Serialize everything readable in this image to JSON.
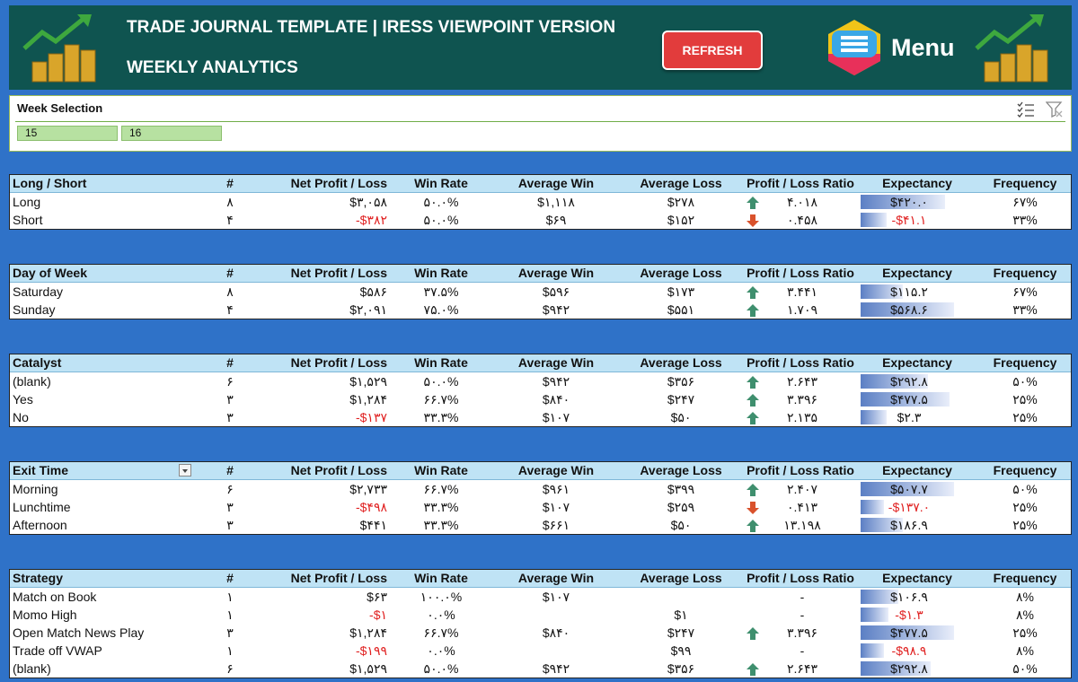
{
  "header": {
    "title": "TRADE JOURNAL TEMPLATE | IRESS VIEWPOINT VERSION",
    "subtitle": "WEEKLY ANALYTICS",
    "refresh_label": "REFRESH",
    "menu_label": "Menu",
    "colors": {
      "background": "#0f5450",
      "refresh": "#e23c3c"
    }
  },
  "slicer": {
    "title": "Week Selection",
    "items": [
      "15",
      "16"
    ]
  },
  "columns": {
    "count": "#",
    "net": "Net Profit / Loss",
    "win": "Win Rate",
    "avg_win": "Average Win",
    "avg_loss": "Average Loss",
    "ratio": "Profit / Loss Ratio",
    "exp": "Expectancy",
    "freq": "Frequency"
  },
  "tables": [
    {
      "title": "Long / Short",
      "rows": [
        {
          "name": "Long",
          "count": "۸",
          "net": "$۳,۰۵۸",
          "net_neg": false,
          "win": "۵۰.۰%",
          "avg_win": "$۱,۱۱۸",
          "avg_loss": "$۲۷۸",
          "arrow": "up",
          "ratio": "۴.۰۱۸",
          "exp": "$۴۲۰.۰",
          "exp_neg": false,
          "exp_level": 0.9,
          "freq": "۶۷%"
        },
        {
          "name": "Short",
          "count": "۴",
          "net": "-$۳۸۲",
          "net_neg": true,
          "win": "۵۰.۰%",
          "avg_win": "$۶۹",
          "avg_loss": "$۱۵۲",
          "arrow": "down",
          "ratio": "۰.۴۵۸",
          "exp": "-$۴۱.۱",
          "exp_neg": true,
          "exp_level": 0.28,
          "freq": "۳۳%"
        }
      ]
    },
    {
      "title": "Day of Week",
      "rows": [
        {
          "name": "Saturday",
          "count": "۸",
          "net": "$۵۸۶",
          "net_neg": false,
          "win": "۳۷.۵%",
          "avg_win": "$۵۹۶",
          "avg_loss": "$۱۷۳",
          "arrow": "up",
          "ratio": "۳.۴۴۱",
          "exp": "$۱۱۵.۲",
          "exp_neg": false,
          "exp_level": 0.45,
          "freq": "۶۷%"
        },
        {
          "name": "Sunday",
          "count": "۴",
          "net": "$۲,۰۹۱",
          "net_neg": false,
          "win": "۷۵.۰%",
          "avg_win": "$۹۴۲",
          "avg_loss": "$۵۵۱",
          "arrow": "up",
          "ratio": "۱.۷۰۹",
          "exp": "$۵۶۸.۶",
          "exp_neg": false,
          "exp_level": 1.0,
          "freq": "۳۳%"
        }
      ]
    },
    {
      "title": "Catalyst",
      "rows": [
        {
          "name": "(blank)",
          "count": "۶",
          "net": "$۱,۵۲۹",
          "net_neg": false,
          "win": "۵۰.۰%",
          "avg_win": "$۹۴۲",
          "avg_loss": "$۳۵۶",
          "arrow": "up",
          "ratio": "۲.۶۴۳",
          "exp": "$۲۹۲.۸",
          "exp_neg": false,
          "exp_level": 0.72,
          "freq": "۵۰%"
        },
        {
          "name": "Yes",
          "count": "۳",
          "net": "$۱,۲۸۴",
          "net_neg": false,
          "win": "۶۶.۷%",
          "avg_win": "$۸۴۰",
          "avg_loss": "$۲۴۷",
          "arrow": "up",
          "ratio": "۳.۳۹۶",
          "exp": "$۴۷۷.۵",
          "exp_neg": false,
          "exp_level": 0.95,
          "freq": "۲۵%"
        },
        {
          "name": "No",
          "count": "۳",
          "net": "-$۱۳۷",
          "net_neg": true,
          "win": "۳۳.۳%",
          "avg_win": "$۱۰۷",
          "avg_loss": "$۵۰",
          "arrow": "up",
          "ratio": "۲.۱۳۵",
          "exp": "$۲.۳",
          "exp_neg": false,
          "exp_level": 0.28,
          "freq": "۲۵%"
        }
      ]
    },
    {
      "title": "Exit Time",
      "has_dropdown": true,
      "rows": [
        {
          "name": "Morning",
          "count": "۶",
          "net": "$۲,۷۳۳",
          "net_neg": false,
          "win": "۶۶.۷%",
          "avg_win": "$۹۶۱",
          "avg_loss": "$۳۹۹",
          "arrow": "up",
          "ratio": "۲.۴۰۷",
          "exp": "$۵۰۷.۷",
          "exp_neg": false,
          "exp_level": 1.0,
          "freq": "۵۰%"
        },
        {
          "name": "Lunchtime",
          "count": "۳",
          "net": "-$۴۹۸",
          "net_neg": true,
          "win": "۳۳.۳%",
          "avg_win": "$۱۰۷",
          "avg_loss": "$۲۵۹",
          "arrow": "down",
          "ratio": "۰.۴۱۳",
          "exp": "-$۱۳۷.۰",
          "exp_neg": true,
          "exp_level": 0.25,
          "freq": "۲۵%"
        },
        {
          "name": "Afternoon",
          "count": "۳",
          "net": "$۴۴۱",
          "net_neg": false,
          "win": "۳۳.۳%",
          "avg_win": "$۶۶۱",
          "avg_loss": "$۵۰",
          "arrow": "up",
          "ratio": "۱۳.۱۹۸",
          "exp": "$۱۸۶.۹",
          "exp_neg": false,
          "exp_level": 0.45,
          "freq": "۲۵%"
        }
      ]
    },
    {
      "title": "Strategy",
      "rows": [
        {
          "name": "Match on Book",
          "count": "۱",
          "net": "$۶۳",
          "net_neg": false,
          "win": "۱۰۰.۰%",
          "avg_win": "$۱۰۷",
          "avg_loss": "",
          "arrow": "",
          "ratio": "-",
          "exp": "$۱۰۶.۹",
          "exp_neg": false,
          "exp_level": 0.4,
          "freq": "۸%"
        },
        {
          "name": "Momo High",
          "count": "۱",
          "net": "-$۱",
          "net_neg": true,
          "win": "۰.۰%",
          "avg_win": "",
          "avg_loss": "$۱",
          "arrow": "",
          "ratio": "-",
          "exp": "-$۱.۳",
          "exp_neg": true,
          "exp_level": 0.3,
          "freq": "۸%"
        },
        {
          "name": "Open Match News Play",
          "count": "۳",
          "net": "$۱,۲۸۴",
          "net_neg": false,
          "win": "۶۶.۷%",
          "avg_win": "$۸۴۰",
          "avg_loss": "$۲۴۷",
          "arrow": "up",
          "ratio": "۳.۳۹۶",
          "exp": "$۴۷۷.۵",
          "exp_neg": false,
          "exp_level": 1.0,
          "freq": "۲۵%"
        },
        {
          "name": "Trade off VWAP",
          "count": "۱",
          "net": "-$۱۹۹",
          "net_neg": true,
          "win": "۰.۰%",
          "avg_win": "",
          "avg_loss": "$۹۹",
          "arrow": "",
          "ratio": "-",
          "exp": "-$۹۸.۹",
          "exp_neg": true,
          "exp_level": 0.25,
          "freq": "۸%"
        },
        {
          "name": "(blank)",
          "count": "۶",
          "net": "$۱,۵۲۹",
          "net_neg": false,
          "win": "۵۰.۰%",
          "avg_win": "$۹۴۲",
          "avg_loss": "$۳۵۶",
          "arrow": "up",
          "ratio": "۲.۶۴۳",
          "exp": "$۲۹۲.۸",
          "exp_neg": false,
          "exp_level": 0.75,
          "freq": "۵۰%"
        }
      ]
    }
  ]
}
